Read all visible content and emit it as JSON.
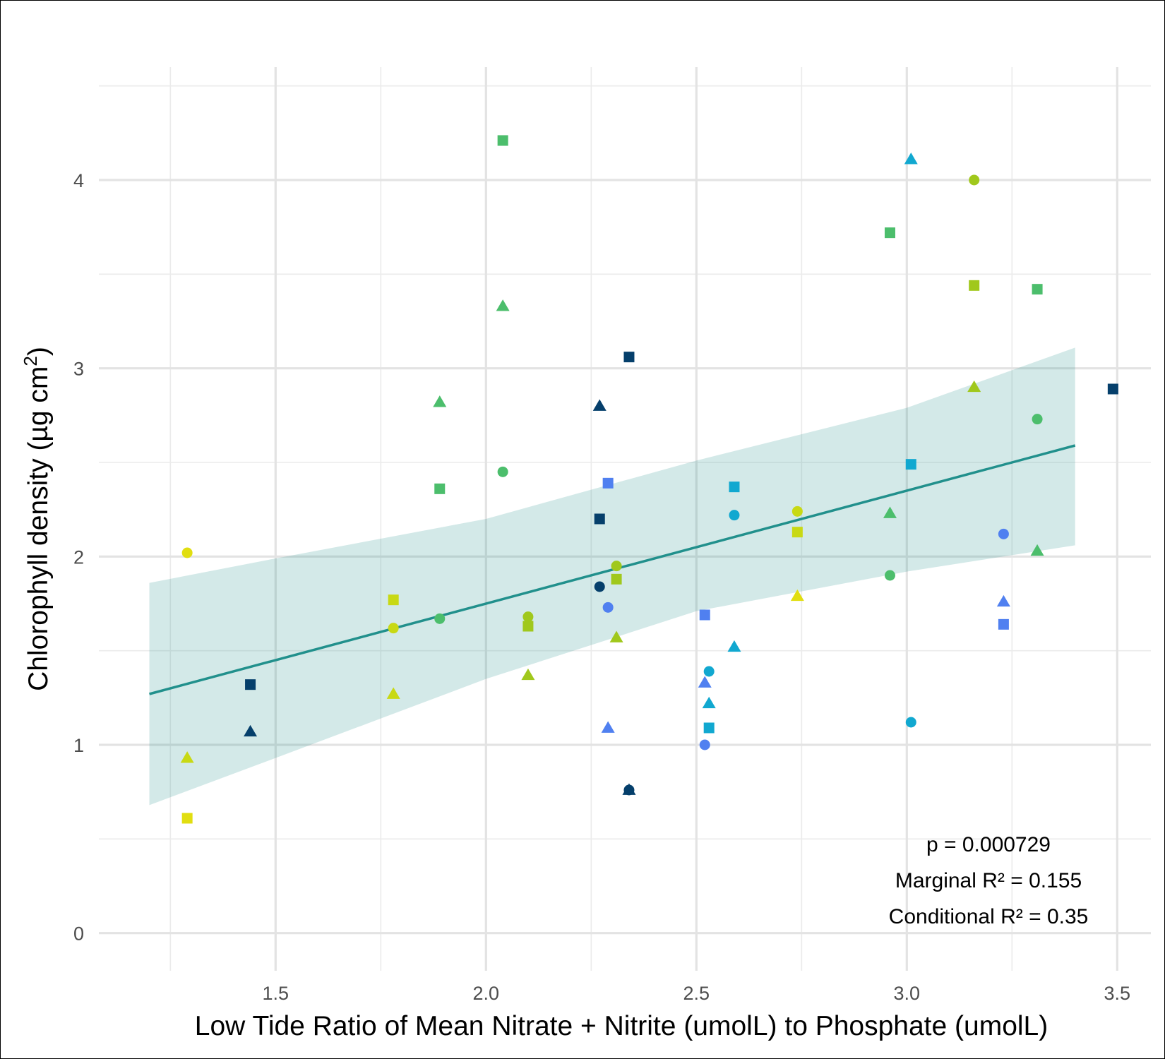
{
  "chart_data": {
    "type": "scatter",
    "title": "",
    "xlabel": "Low Tide Ratio of Mean Nitrate + Nitrite (umolL) to Phosphate (umolL)",
    "ylabel_main": "Chlorophyll density (µg cm",
    "ylabel_sup": "2",
    "ylabel_close": ")",
    "xlim": [
      1.08,
      3.58
    ],
    "ylim": [
      -0.2,
      4.6
    ],
    "grid": true,
    "x_ticks": [
      {
        "value": 1.5,
        "label": "1.5"
      },
      {
        "value": 2.0,
        "label": "2.0"
      },
      {
        "value": 2.5,
        "label": "2.5"
      },
      {
        "value": 3.0,
        "label": "3.0"
      },
      {
        "value": 3.5,
        "label": "3.5"
      }
    ],
    "x_minor": [
      1.25,
      1.75,
      2.25,
      2.75,
      3.25
    ],
    "y_ticks": [
      {
        "value": 0,
        "label": "0"
      },
      {
        "value": 1,
        "label": "1"
      },
      {
        "value": 2,
        "label": "2"
      },
      {
        "value": 3,
        "label": "3"
      },
      {
        "value": 4,
        "label": "4"
      }
    ],
    "y_minor": [
      0.5,
      1.5,
      2.5,
      3.5,
      4.5
    ],
    "fit_line": {
      "x": [
        1.2,
        3.4
      ],
      "y": [
        1.27,
        2.59
      ],
      "color": "#21908c"
    },
    "confidence_band": {
      "x": [
        1.2,
        1.5,
        2.0,
        2.5,
        3.0,
        3.4
      ],
      "lower": [
        0.68,
        0.93,
        1.35,
        1.71,
        1.92,
        2.06
      ],
      "upper": [
        1.86,
        1.99,
        2.2,
        2.51,
        2.79,
        3.11
      ],
      "color": "#21908c"
    },
    "points": [
      {
        "x": 1.29,
        "y": 2.02,
        "shape": "circle",
        "color": "#e1de10"
      },
      {
        "x": 1.29,
        "y": 0.93,
        "shape": "triangle",
        "color": "#c8d914"
      },
      {
        "x": 1.29,
        "y": 0.61,
        "shape": "square",
        "color": "#e1de10"
      },
      {
        "x": 1.44,
        "y": 1.32,
        "shape": "square",
        "color": "#053f6b"
      },
      {
        "x": 1.44,
        "y": 1.07,
        "shape": "triangle",
        "color": "#053f6b"
      },
      {
        "x": 1.78,
        "y": 1.77,
        "shape": "square",
        "color": "#c8d914"
      },
      {
        "x": 1.78,
        "y": 1.62,
        "shape": "circle",
        "color": "#c8d914"
      },
      {
        "x": 1.78,
        "y": 1.27,
        "shape": "triangle",
        "color": "#c8d914"
      },
      {
        "x": 1.89,
        "y": 2.82,
        "shape": "triangle",
        "color": "#4cbe6c"
      },
      {
        "x": 1.89,
        "y": 2.36,
        "shape": "square",
        "color": "#4cbe6c"
      },
      {
        "x": 1.89,
        "y": 1.67,
        "shape": "circle",
        "color": "#4cbe6c"
      },
      {
        "x": 2.04,
        "y": 4.21,
        "shape": "square",
        "color": "#4cbe6c"
      },
      {
        "x": 2.04,
        "y": 3.33,
        "shape": "triangle",
        "color": "#4cbe6c"
      },
      {
        "x": 2.04,
        "y": 2.45,
        "shape": "circle",
        "color": "#4cbe6c"
      },
      {
        "x": 2.1,
        "y": 1.68,
        "shape": "circle",
        "color": "#a0c81c"
      },
      {
        "x": 2.1,
        "y": 1.63,
        "shape": "square",
        "color": "#a0c81c"
      },
      {
        "x": 2.1,
        "y": 1.37,
        "shape": "triangle",
        "color": "#a0c81c"
      },
      {
        "x": 2.27,
        "y": 2.8,
        "shape": "triangle",
        "color": "#053f6b"
      },
      {
        "x": 2.27,
        "y": 2.2,
        "shape": "square",
        "color": "#053f6b"
      },
      {
        "x": 2.27,
        "y": 1.84,
        "shape": "circle",
        "color": "#053f6b"
      },
      {
        "x": 2.29,
        "y": 2.39,
        "shape": "square",
        "color": "#5080f0"
      },
      {
        "x": 2.29,
        "y": 1.73,
        "shape": "circle",
        "color": "#5080f0"
      },
      {
        "x": 2.29,
        "y": 1.09,
        "shape": "triangle",
        "color": "#5080f0"
      },
      {
        "x": 2.31,
        "y": 1.95,
        "shape": "circle",
        "color": "#a0c81c"
      },
      {
        "x": 2.31,
        "y": 1.88,
        "shape": "square",
        "color": "#a0c81c"
      },
      {
        "x": 2.31,
        "y": 1.57,
        "shape": "triangle",
        "color": "#a0c81c"
      },
      {
        "x": 2.34,
        "y": 3.06,
        "shape": "square",
        "color": "#053f6b"
      },
      {
        "x": 2.34,
        "y": 0.76,
        "shape": "circle",
        "color": "#053f6b"
      },
      {
        "x": 2.34,
        "y": 0.76,
        "shape": "triangle",
        "color": "#053f6b"
      },
      {
        "x": 2.52,
        "y": 1.69,
        "shape": "square",
        "color": "#5080f0"
      },
      {
        "x": 2.52,
        "y": 1.33,
        "shape": "triangle",
        "color": "#5080f0"
      },
      {
        "x": 2.52,
        "y": 1.0,
        "shape": "circle",
        "color": "#5080f0"
      },
      {
        "x": 2.53,
        "y": 1.39,
        "shape": "circle",
        "color": "#11a8d0"
      },
      {
        "x": 2.53,
        "y": 1.22,
        "shape": "triangle",
        "color": "#11a8d0"
      },
      {
        "x": 2.53,
        "y": 1.09,
        "shape": "square",
        "color": "#11a8d0"
      },
      {
        "x": 2.59,
        "y": 2.37,
        "shape": "square",
        "color": "#11a8d0"
      },
      {
        "x": 2.59,
        "y": 2.22,
        "shape": "circle",
        "color": "#11a8d0"
      },
      {
        "x": 2.59,
        "y": 1.52,
        "shape": "triangle",
        "color": "#11a8d0"
      },
      {
        "x": 2.74,
        "y": 2.24,
        "shape": "circle",
        "color": "#c8d914"
      },
      {
        "x": 2.74,
        "y": 2.13,
        "shape": "square",
        "color": "#c8d914"
      },
      {
        "x": 2.74,
        "y": 1.79,
        "shape": "triangle",
        "color": "#e1de10"
      },
      {
        "x": 2.96,
        "y": 3.72,
        "shape": "square",
        "color": "#4cbe6c"
      },
      {
        "x": 2.96,
        "y": 2.23,
        "shape": "triangle",
        "color": "#4cbe6c"
      },
      {
        "x": 2.96,
        "y": 1.9,
        "shape": "circle",
        "color": "#4cbe6c"
      },
      {
        "x": 3.01,
        "y": 4.11,
        "shape": "triangle",
        "color": "#11a8d0"
      },
      {
        "x": 3.01,
        "y": 2.49,
        "shape": "square",
        "color": "#11a8d0"
      },
      {
        "x": 3.01,
        "y": 1.12,
        "shape": "circle",
        "color": "#11a8d0"
      },
      {
        "x": 3.16,
        "y": 4.0,
        "shape": "circle",
        "color": "#a0c81c"
      },
      {
        "x": 3.16,
        "y": 3.44,
        "shape": "square",
        "color": "#a0c81c"
      },
      {
        "x": 3.16,
        "y": 2.9,
        "shape": "triangle",
        "color": "#a0c81c"
      },
      {
        "x": 3.23,
        "y": 2.12,
        "shape": "circle",
        "color": "#5080f0"
      },
      {
        "x": 3.23,
        "y": 1.76,
        "shape": "triangle",
        "color": "#5080f0"
      },
      {
        "x": 3.23,
        "y": 1.64,
        "shape": "square",
        "color": "#5080f0"
      },
      {
        "x": 3.31,
        "y": 3.42,
        "shape": "square",
        "color": "#4cbe6c"
      },
      {
        "x": 3.31,
        "y": 2.73,
        "shape": "circle",
        "color": "#4cbe6c"
      },
      {
        "x": 3.31,
        "y": 2.03,
        "shape": "triangle",
        "color": "#4cbe6c"
      },
      {
        "x": 3.49,
        "y": 2.89,
        "shape": "square",
        "color": "#053f6b"
      }
    ],
    "annotations": [
      "p = 0.000729",
      "Marginal R² = 0.155",
      "Conditional R² = 0.35"
    ]
  }
}
